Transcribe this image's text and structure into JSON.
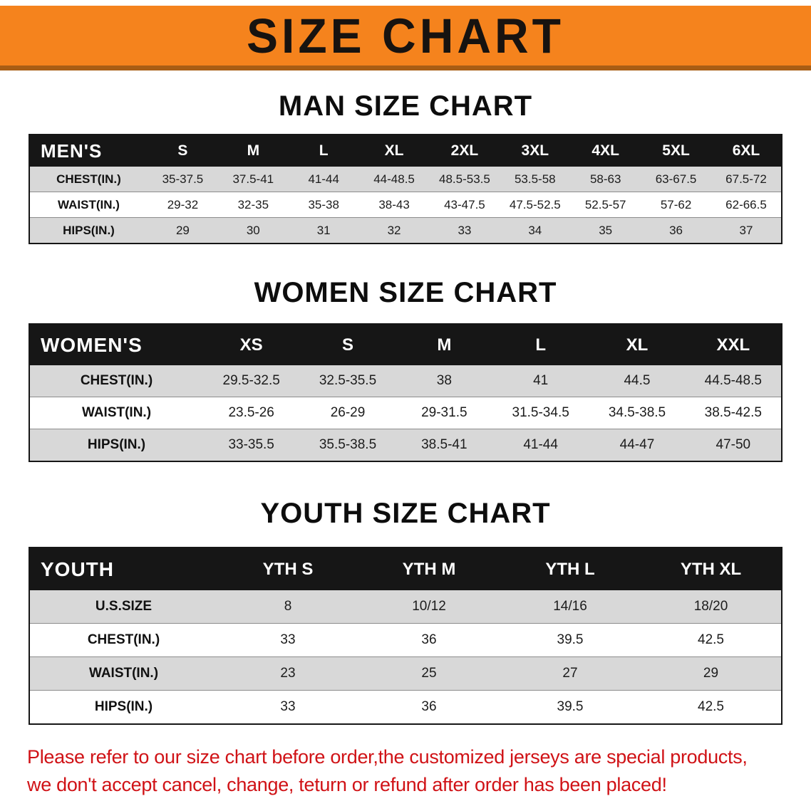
{
  "banner": {
    "title": "SIZE CHART",
    "bg_color": "#f5831d",
    "text_color": "#171310"
  },
  "men": {
    "heading": "MAN SIZE CHART",
    "header_label": "MEN'S",
    "columns": [
      "S",
      "M",
      "L",
      "XL",
      "2XL",
      "3XL",
      "4XL",
      "5XL",
      "6XL"
    ],
    "rows": [
      {
        "label": "CHEST(IN.)",
        "values": [
          "35-37.5",
          "37.5-41",
          "41-44",
          "44-48.5",
          "48.5-53.5",
          "53.5-58",
          "58-63",
          "63-67.5",
          "67.5-72"
        ]
      },
      {
        "label": "WAIST(IN.)",
        "values": [
          "29-32",
          "32-35",
          "35-38",
          "38-43",
          "43-47.5",
          "47.5-52.5",
          "52.5-57",
          "57-62",
          "62-66.5"
        ]
      },
      {
        "label": "HIPS(IN.)",
        "values": [
          "29",
          "30",
          "31",
          "32",
          "33",
          "34",
          "35",
          "36",
          "37"
        ]
      }
    ]
  },
  "women": {
    "heading": "WOMEN SIZE CHART",
    "header_label": "WOMEN'S",
    "columns": [
      "XS",
      "S",
      "M",
      "L",
      "XL",
      "XXL"
    ],
    "rows": [
      {
        "label": "CHEST(IN.)",
        "values": [
          "29.5-32.5",
          "32.5-35.5",
          "38",
          "41",
          "44.5",
          "44.5-48.5"
        ]
      },
      {
        "label": "WAIST(IN.)",
        "values": [
          "23.5-26",
          "26-29",
          "29-31.5",
          "31.5-34.5",
          "34.5-38.5",
          "38.5-42.5"
        ]
      },
      {
        "label": "HIPS(IN.)",
        "values": [
          "33-35.5",
          "35.5-38.5",
          "38.5-41",
          "41-44",
          "44-47",
          "47-50"
        ]
      }
    ]
  },
  "youth": {
    "heading": "YOUTH SIZE CHART",
    "header_label": "YOUTH",
    "columns": [
      "YTH S",
      "YTH M",
      "YTH L",
      "YTH XL"
    ],
    "rows": [
      {
        "label": "U.S.SIZE",
        "values": [
          "8",
          "10/12",
          "14/16",
          "18/20"
        ]
      },
      {
        "label": "CHEST(IN.)",
        "values": [
          "33",
          "36",
          "39.5",
          "42.5"
        ]
      },
      {
        "label": "WAIST(IN.)",
        "values": [
          "23",
          "25",
          "27",
          "29"
        ]
      },
      {
        "label": "HIPS(IN.)",
        "values": [
          "33",
          "36",
          "39.5",
          "42.5"
        ]
      }
    ]
  },
  "disclaimer": {
    "line1": "Please refer to our size chart before order,the customized jerseys are special products,",
    "line2": "we don't accept cancel, change, teturn or refund after order has been placed!",
    "color": "#d01216"
  }
}
